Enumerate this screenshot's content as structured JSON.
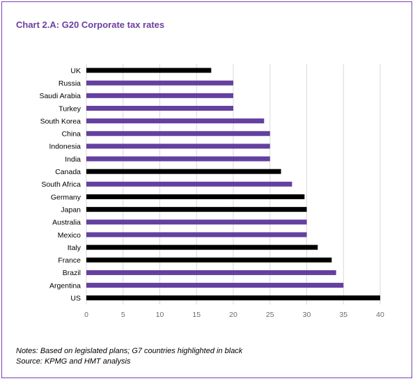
{
  "title": "Chart 2.A: G20 Corporate tax rates",
  "notes": "Notes: Based on legislated plans; G7 countries highlighted in black",
  "source": "Source: KPMG and HMT analysis",
  "colors": {
    "g7": "#000000",
    "other": "#6440a0",
    "frame": "#7a3fb0",
    "title": "#6b3fa0"
  },
  "chart_data": {
    "type": "bar",
    "orientation": "horizontal",
    "title": "Chart 2.A: G20 Corporate tax rates",
    "xlim": [
      0,
      40
    ],
    "xticks": [
      0,
      5,
      10,
      15,
      20,
      25,
      30,
      35,
      40
    ],
    "grid": "vertical",
    "categories": [
      "UK",
      "Russia",
      "Saudi Arabia",
      "Turkey",
      "South Korea",
      "China",
      "Indonesia",
      "India",
      "Canada",
      "South Africa",
      "Germany",
      "Japan",
      "Australia",
      "Mexico",
      "Italy",
      "France",
      "Brazil",
      "Argentina",
      "US"
    ],
    "values": [
      17,
      20,
      20,
      20,
      24.2,
      25,
      25,
      25,
      26.5,
      28,
      29.7,
      30,
      30,
      30,
      31.5,
      33.4,
      34,
      35,
      40
    ],
    "g7": [
      true,
      false,
      false,
      false,
      false,
      false,
      false,
      false,
      true,
      false,
      true,
      true,
      false,
      false,
      true,
      true,
      false,
      false,
      true
    ]
  }
}
